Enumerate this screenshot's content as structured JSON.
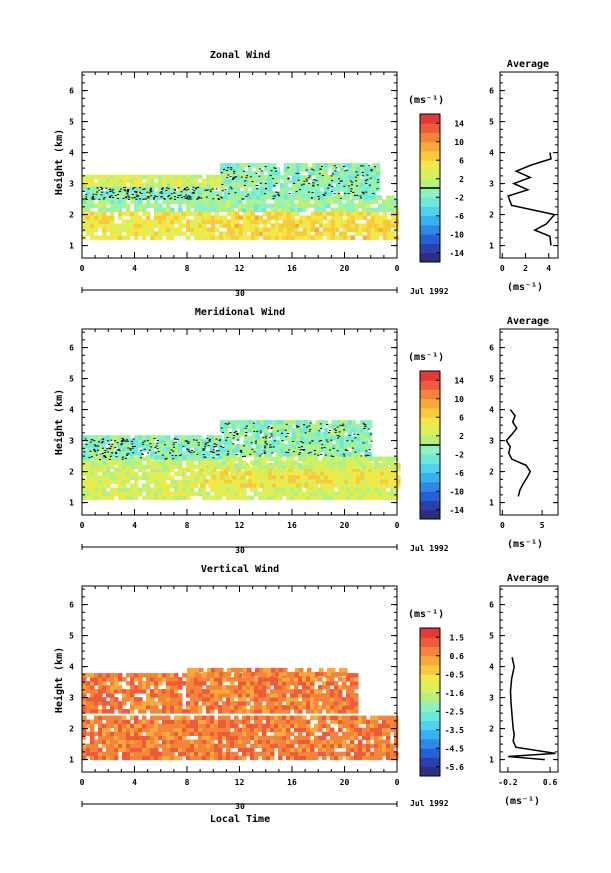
{
  "chart_data": [
    {
      "type": "heatmap",
      "title": "Zonal Wind",
      "ylabel": "Height (km)",
      "xticks": [
        "0",
        "4",
        "8",
        "12",
        "16",
        "20",
        "0"
      ],
      "xlim": [
        0,
        24
      ],
      "yticks": [
        "1",
        "2",
        "3",
        "4",
        "5",
        "6"
      ],
      "ylim": [
        0.6,
        6.6
      ],
      "date_axis": {
        "day": "30",
        "date_label": "Jul 1992"
      },
      "colorbar": {
        "unit": "(ms⁻¹)",
        "ticks": [
          "14",
          "10",
          "6",
          "2",
          "-2",
          "-6",
          "-10",
          "-14"
        ],
        "range": [
          -16,
          16
        ]
      },
      "contour_level": 0,
      "regions": [
        {
          "x0": 0.0,
          "x1": 9.5,
          "y0": 1.2,
          "y1": 2.0,
          "value": 5
        },
        {
          "x0": 9.5,
          "x1": 24.0,
          "y0": 1.2,
          "y1": 2.1,
          "value": 6
        },
        {
          "x0": 0.0,
          "x1": 24.0,
          "y0": 2.1,
          "y1": 2.5,
          "value": 0
        },
        {
          "x0": 0.0,
          "x1": 10.5,
          "y0": 2.5,
          "y1": 2.9,
          "value": -1
        },
        {
          "x0": 10.5,
          "x1": 22.5,
          "y0": 2.5,
          "y1": 3.6,
          "value": -1
        },
        {
          "x0": 0.0,
          "x1": 10.5,
          "y0": 2.9,
          "y1": 3.2,
          "value": 3
        }
      ],
      "average_profile": {
        "title": "Average",
        "xticks": [
          "0",
          "2",
          "4"
        ],
        "xlim": [
          -0.2,
          4.8
        ],
        "xlabel": "(ms⁻¹)",
        "height": [
          1.0,
          1.3,
          1.5,
          1.7,
          2.0,
          2.3,
          2.6,
          2.8,
          3.0,
          3.2,
          3.4,
          3.6,
          3.8,
          4.0
        ],
        "values": [
          4.2,
          4.1,
          2.8,
          3.8,
          4.5,
          0.8,
          0.5,
          2.2,
          1.0,
          2.4,
          1.2,
          2.5,
          4.2,
          4.1
        ]
      }
    },
    {
      "type": "heatmap",
      "title": "Meridional Wind",
      "ylabel": "Height (km)",
      "xticks": [
        "0",
        "4",
        "8",
        "12",
        "16",
        "20",
        "0"
      ],
      "xlim": [
        0,
        24
      ],
      "yticks": [
        "1",
        "2",
        "3",
        "4",
        "5",
        "6"
      ],
      "ylim": [
        0.6,
        6.6
      ],
      "date_axis": {
        "day": "30",
        "date_label": "Jul 1992"
      },
      "colorbar": {
        "unit": "(ms⁻¹)",
        "ticks": [
          "14",
          "10",
          "6",
          "2",
          "-2",
          "-6",
          "-10",
          "-14"
        ],
        "range": [
          -16,
          16
        ]
      },
      "contour_level": 0,
      "regions": [
        {
          "x0": 0.0,
          "x1": 24.0,
          "y0": 1.1,
          "y1": 2.1,
          "value": 3
        },
        {
          "x0": 9.0,
          "x1": 24.0,
          "y0": 1.5,
          "y1": 2.2,
          "value": 5
        },
        {
          "x0": 0.0,
          "x1": 24.0,
          "y0": 2.1,
          "y1": 2.4,
          "value": 2
        },
        {
          "x0": 0.0,
          "x1": 10.5,
          "y0": 2.4,
          "y1": 3.1,
          "value": -1
        },
        {
          "x0": 10.5,
          "x1": 22.0,
          "y0": 2.5,
          "y1": 3.6,
          "value": -1
        }
      ],
      "average_profile": {
        "title": "Average",
        "xticks": [
          "0",
          "5"
        ],
        "xlim": [
          -0.3,
          7.0
        ],
        "xlabel": "(ms⁻¹)",
        "height": [
          1.2,
          1.4,
          1.6,
          1.8,
          2.0,
          2.2,
          2.4,
          2.6,
          2.8,
          3.0,
          3.2,
          3.4,
          3.6,
          3.8,
          4.0
        ],
        "values": [
          2.0,
          2.2,
          2.6,
          3.1,
          3.5,
          3.0,
          1.2,
          0.8,
          1.0,
          0.5,
          1.2,
          1.8,
          1.3,
          1.6,
          1.0
        ]
      }
    },
    {
      "type": "heatmap",
      "title": "Vertical Wind",
      "ylabel": "Height (km)",
      "xlabel": "Local Time",
      "xticks": [
        "0",
        "4",
        "8",
        "12",
        "16",
        "20",
        "0"
      ],
      "xlim": [
        0,
        24
      ],
      "yticks": [
        "1",
        "2",
        "3",
        "4",
        "5",
        "6"
      ],
      "ylim": [
        0.6,
        6.6
      ],
      "date_axis": {
        "day": "30",
        "date_label": "Jul 1992"
      },
      "colorbar": {
        "unit": "(ms⁻¹)",
        "ticks": [
          "1.5",
          "0.6",
          "-0.5",
          "-1.6",
          "-2.5",
          "-3.5",
          "-4.5",
          "-5.6"
        ],
        "range": [
          -6,
          2
        ]
      },
      "regions": [
        {
          "x0": 0.0,
          "x1": 24.0,
          "y0": 1.0,
          "y1": 2.3,
          "value": 0.8
        },
        {
          "x0": 0.0,
          "x1": 21.0,
          "y0": 2.5,
          "y1": 3.7,
          "value": 0.8
        },
        {
          "x0": 8.0,
          "x1": 20.0,
          "y0": 3.7,
          "y1": 3.9,
          "value": 0.6
        }
      ],
      "average_profile": {
        "title": "Average",
        "xticks": [
          "-0.2",
          "0.6"
        ],
        "xlim": [
          -0.35,
          0.75
        ],
        "xlabel": "(ms⁻¹)",
        "height": [
          1.0,
          1.1,
          1.2,
          1.4,
          1.6,
          1.8,
          2.0,
          2.4,
          2.8,
          3.2,
          3.6,
          4.0,
          4.3
        ],
        "values": [
          0.5,
          -0.2,
          0.7,
          -0.05,
          -0.1,
          -0.08,
          -0.1,
          -0.12,
          -0.14,
          -0.15,
          -0.13,
          -0.08,
          -0.12
        ]
      }
    }
  ]
}
